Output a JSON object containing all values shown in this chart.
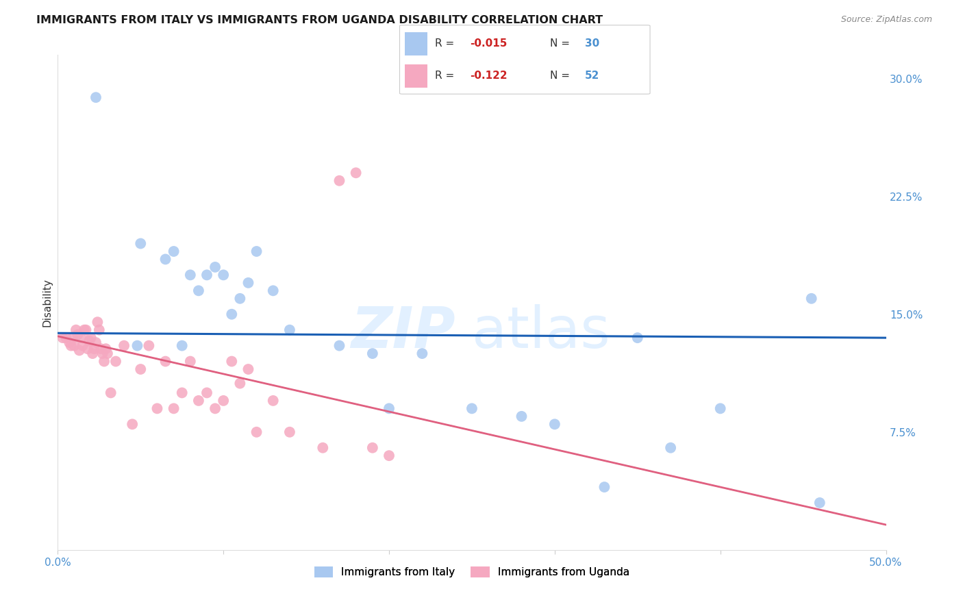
{
  "title": "IMMIGRANTS FROM ITALY VS IMMIGRANTS FROM UGANDA DISABILITY CORRELATION CHART",
  "source": "Source: ZipAtlas.com",
  "ylabel": "Disability",
  "xlim": [
    0.0,
    0.5
  ],
  "ylim": [
    0.0,
    0.315
  ],
  "yticks": [
    0.075,
    0.15,
    0.225,
    0.3
  ],
  "ytick_labels": [
    "7.5%",
    "15.0%",
    "22.5%",
    "30.0%"
  ],
  "legend_italy_R": "-0.015",
  "legend_italy_N": "30",
  "legend_uganda_R": "-0.122",
  "legend_uganda_N": "52",
  "italy_color": "#a8c8f0",
  "uganda_color": "#f5a8c0",
  "italy_line_color": "#1a5fb4",
  "uganda_line_color": "#e06080",
  "uganda_dash_color": "#e0b0c0",
  "tick_color": "#4a90d0",
  "grid_color": "#cccccc",
  "background_color": "#ffffff",
  "italy_scatter_x": [
    0.023,
    0.05,
    0.065,
    0.07,
    0.08,
    0.085,
    0.09,
    0.1,
    0.105,
    0.11,
    0.115,
    0.12,
    0.13,
    0.14,
    0.17,
    0.2,
    0.22,
    0.25,
    0.3,
    0.35,
    0.37,
    0.4,
    0.455,
    0.46,
    0.048,
    0.075,
    0.095,
    0.19,
    0.28,
    0.33
  ],
  "italy_scatter_y": [
    0.288,
    0.195,
    0.185,
    0.19,
    0.175,
    0.165,
    0.175,
    0.175,
    0.15,
    0.16,
    0.17,
    0.19,
    0.165,
    0.14,
    0.13,
    0.09,
    0.125,
    0.09,
    0.08,
    0.135,
    0.065,
    0.09,
    0.16,
    0.03,
    0.13,
    0.13,
    0.18,
    0.125,
    0.085,
    0.04
  ],
  "uganda_scatter_x": [
    0.003,
    0.005,
    0.007,
    0.008,
    0.009,
    0.01,
    0.011,
    0.012,
    0.013,
    0.014,
    0.015,
    0.016,
    0.017,
    0.018,
    0.019,
    0.02,
    0.021,
    0.022,
    0.023,
    0.024,
    0.025,
    0.026,
    0.027,
    0.028,
    0.029,
    0.03,
    0.032,
    0.035,
    0.04,
    0.045,
    0.05,
    0.055,
    0.06,
    0.065,
    0.07,
    0.075,
    0.08,
    0.085,
    0.09,
    0.095,
    0.1,
    0.105,
    0.11,
    0.115,
    0.12,
    0.13,
    0.14,
    0.16,
    0.17,
    0.18,
    0.19,
    0.2
  ],
  "uganda_scatter_y": [
    0.135,
    0.135,
    0.132,
    0.13,
    0.135,
    0.13,
    0.14,
    0.137,
    0.127,
    0.135,
    0.13,
    0.14,
    0.14,
    0.128,
    0.133,
    0.135,
    0.125,
    0.128,
    0.132,
    0.145,
    0.14,
    0.128,
    0.125,
    0.12,
    0.128,
    0.125,
    0.1,
    0.12,
    0.13,
    0.08,
    0.115,
    0.13,
    0.09,
    0.12,
    0.09,
    0.1,
    0.12,
    0.095,
    0.1,
    0.09,
    0.095,
    0.12,
    0.106,
    0.115,
    0.075,
    0.095,
    0.075,
    0.065,
    0.235,
    0.24,
    0.065,
    0.06
  ],
  "watermark_zip": "ZIP",
  "watermark_atlas": "atlas",
  "title_fontsize": 11.5,
  "source_fontsize": 9,
  "legend_fontsize": 11,
  "tick_fontsize": 11
}
